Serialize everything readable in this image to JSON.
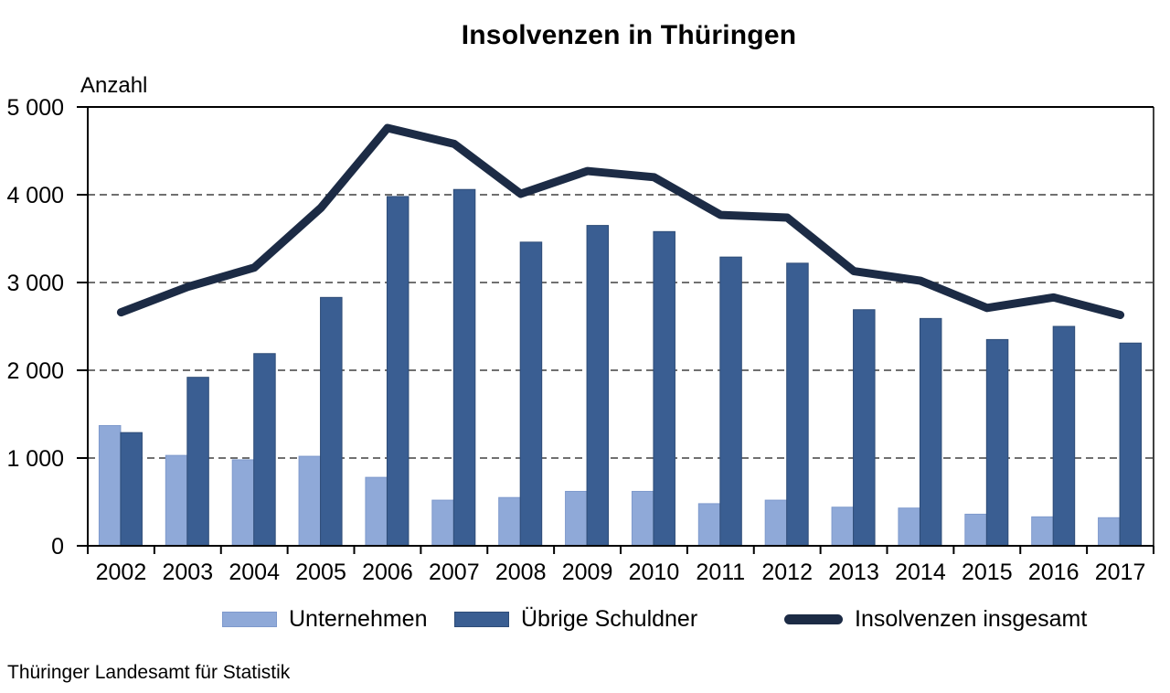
{
  "title": "Insolvenzen in Thüringen",
  "footer": "Thüringer Landesamt für Statistik",
  "chart_data": {
    "type": "bar",
    "title": "Insolvenzen in Thüringen",
    "xlabel": "",
    "ylabel": "Anzahl",
    "categories": [
      "2002",
      "2003",
      "2004",
      "2005",
      "2006",
      "2007",
      "2008",
      "2009",
      "2010",
      "2011",
      "2012",
      "2013",
      "2014",
      "2015",
      "2016",
      "2017"
    ],
    "series": [
      {
        "name": "Unternehmen",
        "type": "bar",
        "color": "#8FA9D8",
        "border_color": "#7E99CC",
        "values": [
          1370,
          1030,
          980,
          1020,
          780,
          520,
          550,
          620,
          620,
          480,
          520,
          440,
          430,
          360,
          330,
          320
        ]
      },
      {
        "name": "Übrige Schuldner",
        "type": "bar",
        "color": "#3A5E92",
        "border_color": "#2E4C77",
        "values": [
          1290,
          1920,
          2190,
          2830,
          3980,
          4060,
          3460,
          3650,
          3580,
          3290,
          3220,
          2690,
          2590,
          2350,
          2500,
          2310
        ]
      },
      {
        "name": "Insolvenzen insgesamt",
        "type": "line",
        "color": "#1C2B45",
        "values": [
          2660,
          2950,
          3170,
          3850,
          4760,
          4580,
          4010,
          4270,
          4200,
          3770,
          3740,
          3130,
          3020,
          2710,
          2830,
          2630
        ]
      }
    ],
    "ylim": [
      0,
      5000
    ],
    "ytick_step": 1000,
    "ytick_labels": [
      "0",
      "1 000",
      "2 000",
      "3 000",
      "4 000",
      "5 000"
    ],
    "grid": "horizontal dashed, solid top border",
    "legend_position": "bottom",
    "axis_color": "#000000",
    "grid_color": "#404040"
  }
}
